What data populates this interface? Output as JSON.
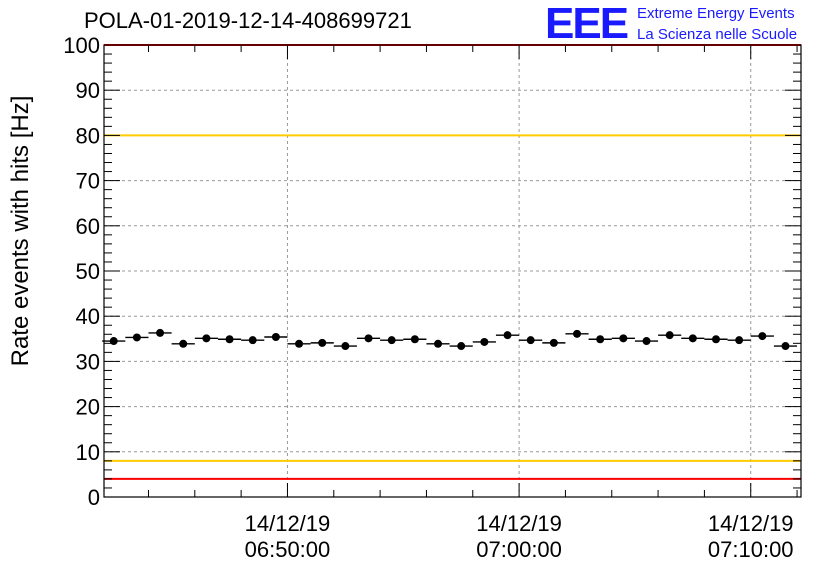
{
  "page": {
    "title": "POLA-01-2019-12-14-408699721"
  },
  "logo": {
    "mark": "EEE",
    "line1": "Extreme Energy Events",
    "line2": "La Scienza nelle Scuole",
    "color": "#1a1aff"
  },
  "chart_data": {
    "type": "scatter",
    "title": "POLA-01-2019-12-14-408699721",
    "xlabel": "",
    "ylabel": "Rate events with hits [Hz]",
    "ylim": [
      0,
      100
    ],
    "y_ticks": [
      0,
      10,
      20,
      30,
      40,
      50,
      60,
      70,
      80,
      90,
      100
    ],
    "x_time_range_min": [
      -7.92,
      22.17
    ],
    "x_tick_labels": [
      {
        "t_min": 0,
        "date": "14/12/19",
        "time": "06:50:00"
      },
      {
        "t_min": 10,
        "date": "14/12/19",
        "time": "07:00:00"
      },
      {
        "t_min": 20,
        "date": "14/12/19",
        "time": "07:10:00"
      }
    ],
    "grid": true,
    "marker_color": "#000000",
    "bin_halfwidth_min": 0.5,
    "series": [
      {
        "x_min": [
          -7.5,
          -6.5,
          -5.5,
          -4.5,
          -3.5,
          -2.5,
          -1.5,
          -0.5,
          0.5,
          1.5,
          2.5,
          3.5,
          4.5,
          5.5,
          6.5,
          7.5,
          8.5,
          9.5,
          10.5,
          11.5,
          12.5,
          13.5,
          14.5,
          15.5,
          16.5,
          17.5,
          18.5,
          19.5,
          20.5,
          21.5
        ],
        "values": [
          34.5,
          35.3,
          36.3,
          33.9,
          35.1,
          34.9,
          34.7,
          35.4,
          33.9,
          34.1,
          33.4,
          35.1,
          34.7,
          34.9,
          33.9,
          33.4,
          34.3,
          35.8,
          34.7,
          34.1,
          36.1,
          34.9,
          35.1,
          34.5,
          35.8,
          35.1,
          34.9,
          34.7,
          35.6,
          33.4
        ]
      }
    ],
    "reference_lines": [
      {
        "y": 100,
        "color": "#ff0000"
      },
      {
        "y": 80,
        "color": "#ffcc00"
      },
      {
        "y": 8,
        "color": "#ffcc00"
      },
      {
        "y": 4,
        "color": "#ff0000"
      }
    ]
  }
}
